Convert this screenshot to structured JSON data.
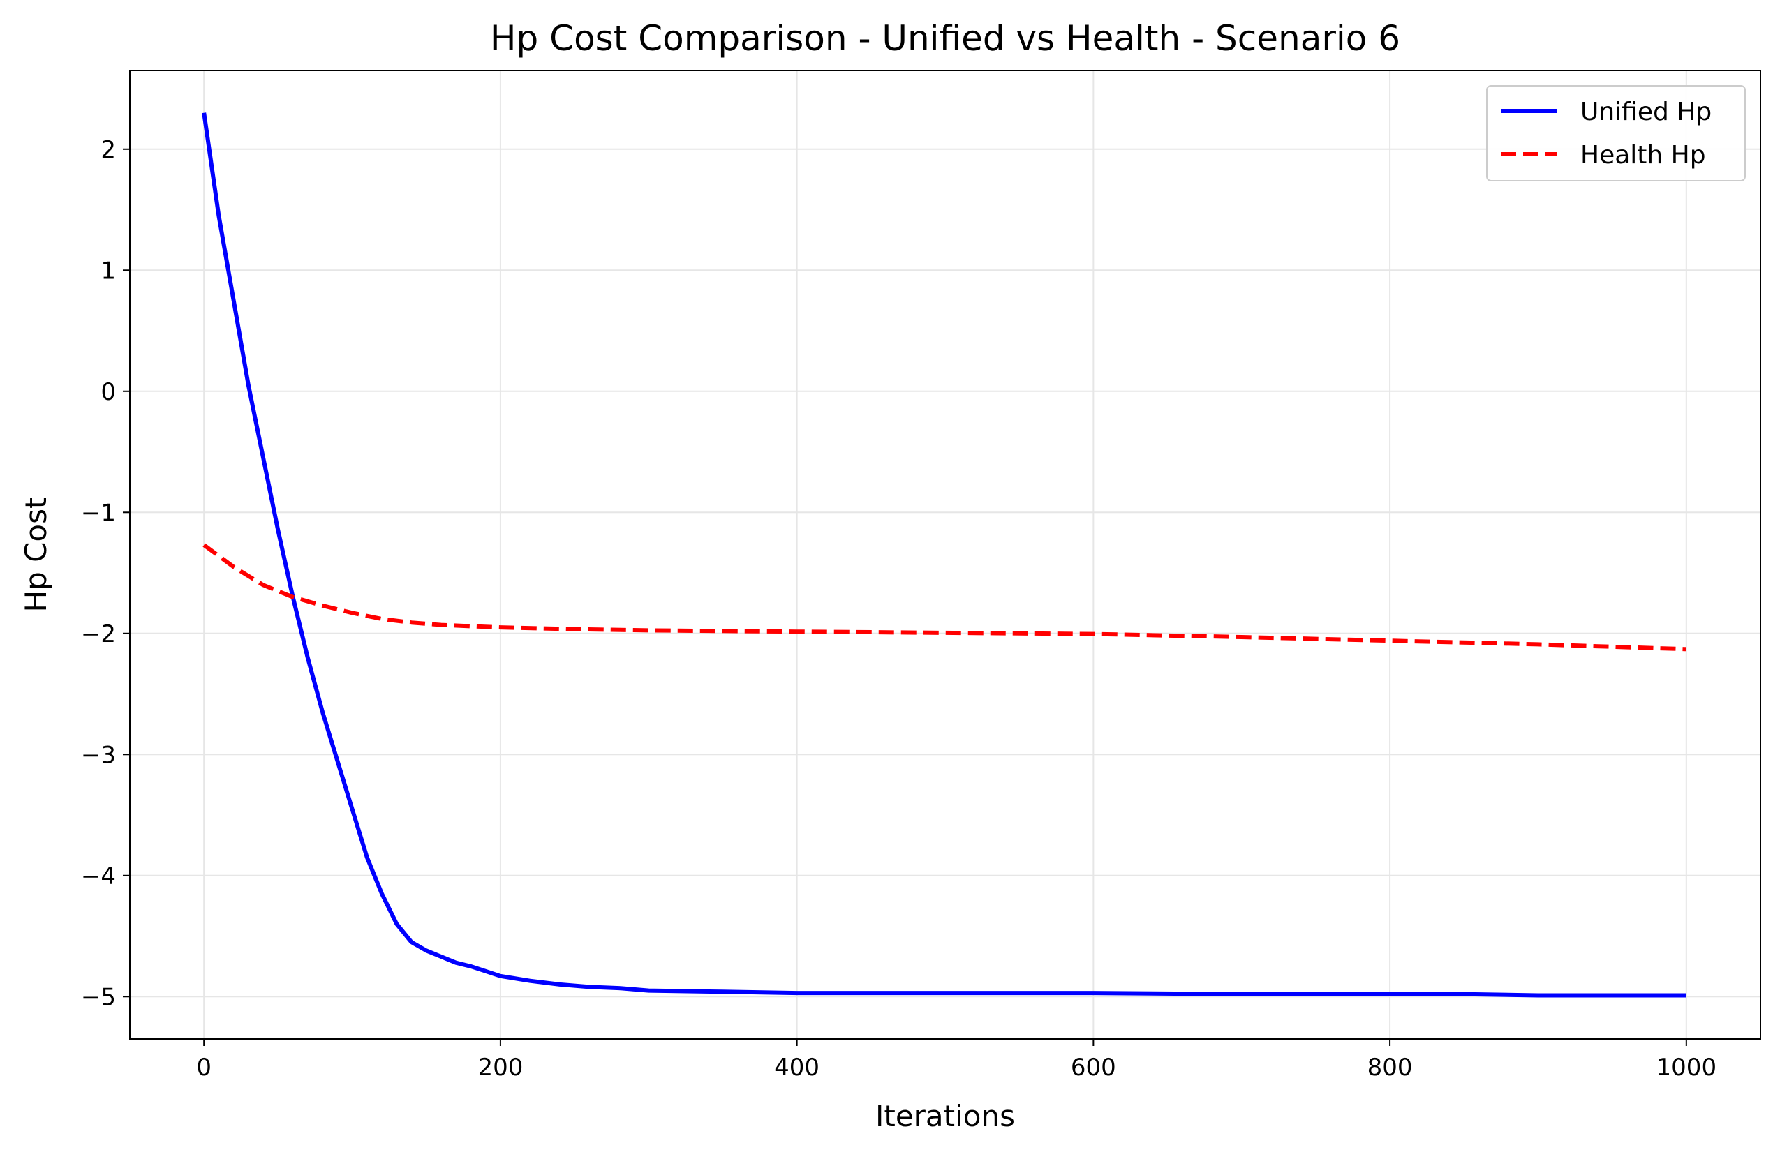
{
  "chart_data": {
    "type": "line",
    "title": "Hp Cost Comparison - Unified vs Health - Scenario 6",
    "xlabel": "Iterations",
    "ylabel": "Hp Cost",
    "xlim": [
      -50,
      1050
    ],
    "ylim": [
      -5.35,
      2.65
    ],
    "xticks": [
      0,
      200,
      400,
      600,
      800,
      1000
    ],
    "xtick_labels": [
      "0",
      "200",
      "400",
      "600",
      "800",
      "1000"
    ],
    "yticks": [
      2,
      1,
      0,
      -1,
      -2,
      -3,
      -4,
      -5
    ],
    "ytick_labels": [
      "2",
      "1",
      "0",
      "−1",
      "−2",
      "−3",
      "−4",
      "−5"
    ],
    "grid": true,
    "legend_position": "top-right",
    "series": [
      {
        "name": "Unified Hp",
        "color": "#0000ff",
        "style": "solid",
        "x": [
          0,
          10,
          20,
          30,
          40,
          50,
          60,
          70,
          80,
          90,
          100,
          110,
          120,
          130,
          140,
          150,
          160,
          170,
          180,
          190,
          200,
          220,
          240,
          260,
          280,
          300,
          350,
          400,
          500,
          600,
          700,
          800,
          850,
          900,
          950,
          1000
        ],
        "y": [
          2.3,
          1.45,
          0.75,
          0.05,
          -0.55,
          -1.15,
          -1.7,
          -2.2,
          -2.65,
          -3.05,
          -3.45,
          -3.85,
          -4.15,
          -4.4,
          -4.55,
          -4.62,
          -4.67,
          -4.72,
          -4.75,
          -4.79,
          -4.83,
          -4.87,
          -4.9,
          -4.92,
          -4.93,
          -4.95,
          -4.96,
          -4.97,
          -4.97,
          -4.97,
          -4.98,
          -4.98,
          -4.98,
          -4.99,
          -4.99,
          -4.99
        ]
      },
      {
        "name": "Health Hp",
        "color": "#ff0000",
        "style": "dashed",
        "x": [
          0,
          20,
          40,
          60,
          80,
          100,
          120,
          140,
          160,
          180,
          200,
          250,
          300,
          400,
          500,
          600,
          700,
          800,
          900,
          1000
        ],
        "y": [
          -1.27,
          -1.45,
          -1.6,
          -1.7,
          -1.77,
          -1.83,
          -1.88,
          -1.91,
          -1.93,
          -1.94,
          -1.95,
          -1.965,
          -1.975,
          -1.985,
          -1.995,
          -2.005,
          -2.03,
          -2.06,
          -2.09,
          -2.13
        ]
      }
    ]
  }
}
